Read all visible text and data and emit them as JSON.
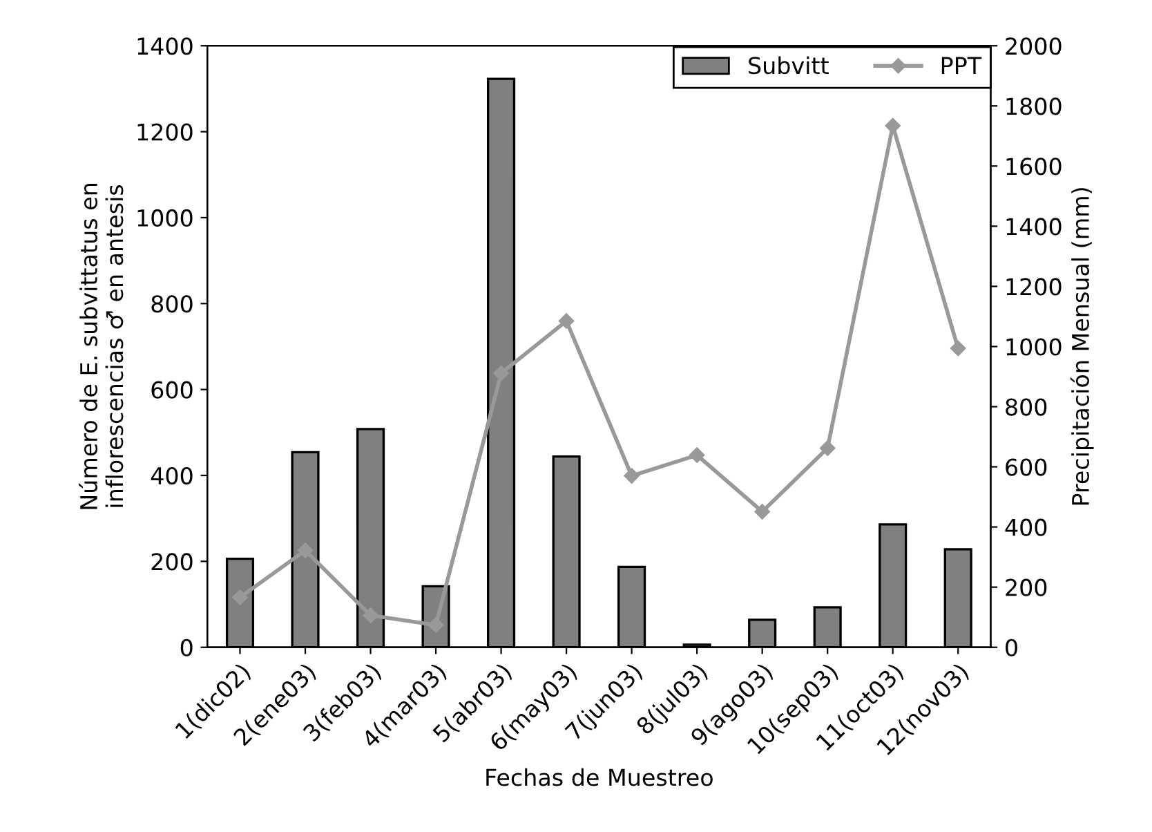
{
  "chart_data": {
    "type": "bar",
    "xlabel": "Fechas de Muestreo",
    "ylabel": "Número de E. subvittatus en\ninflorescencias ♂ en antesis",
    "y2label": "Precipitación Mensual (mm)",
    "categories": [
      "1(dic02)",
      "2(ene03)",
      "3(feb03)",
      "4(mar03)",
      "5(abr03)",
      "6(may03)",
      "7(jun03)",
      "8(jul03)",
      "9(ago03)",
      "10(sep03)",
      "11(oct03)",
      "12(nov03)"
    ],
    "series": [
      {
        "name": "Subvitt",
        "color": "#808080",
        "values": [
          206,
          454,
          508,
          142,
          1323,
          444,
          187,
          6,
          64,
          93,
          286,
          228
        ]
      },
      {
        "name": "PPT",
        "type": "line",
        "axis": "y2",
        "color": "#999999",
        "marker": "diamond",
        "values": [
          166,
          322,
          106,
          74,
          911,
          1085,
          570,
          639,
          451,
          662,
          1734,
          994
        ]
      }
    ],
    "ylim": [
      0,
      1400
    ],
    "yticks": [
      0,
      200,
      400,
      600,
      800,
      1000,
      1200,
      1400
    ],
    "y2lim": [
      0,
      2000
    ],
    "y2ticks": [
      0,
      200,
      400,
      600,
      800,
      1000,
      1200,
      1400,
      1600,
      1800,
      2000
    ],
    "legend": "top right",
    "grid": false
  }
}
